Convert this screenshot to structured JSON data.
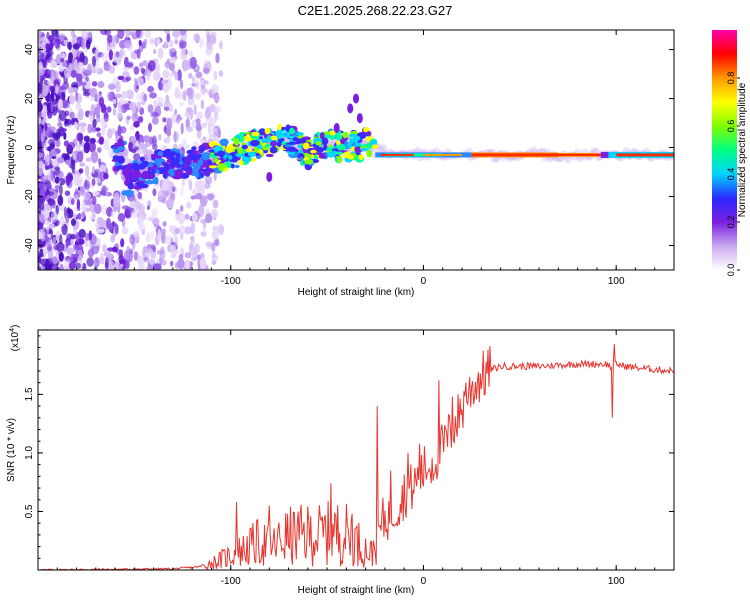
{
  "page_title": "C2E1.2025.268.22.23.G27",
  "chart_data": [
    {
      "type": "heatmap",
      "title": "C2E1.2025.268.22.23.G27",
      "xlabel": "Height of straight line (km)",
      "ylabel": "Frequency (Hz)",
      "xlim": [
        -200,
        130
      ],
      "ylim": [
        -50,
        48
      ],
      "x_ticks": [
        -100,
        0,
        100
      ],
      "y_ticks": [
        -40,
        -20,
        0,
        20,
        40
      ],
      "colorbar": {
        "label": "Normalized spectral amplitude",
        "range": [
          0,
          1
        ],
        "ticks": [
          "0.0",
          "0.2",
          "0.4",
          "0.6",
          "0.8"
        ],
        "tick_values": [
          0.0,
          0.2,
          0.4,
          0.6,
          0.8
        ],
        "colormap": [
          "#ffffff",
          "#c9a8f0",
          "#7a1fe0",
          "#2a2aff",
          "#00d4ff",
          "#00ff80",
          "#80ff00",
          "#ffff00",
          "#ff9900",
          "#ff0000",
          "#ff00aa"
        ]
      },
      "trace": [
        {
          "x": -155,
          "f": -14
        },
        {
          "x": -140,
          "f": -8
        },
        {
          "x": -120,
          "f": -6
        },
        {
          "x": -100,
          "f": -3
        },
        {
          "x": -85,
          "f": 2
        },
        {
          "x": -70,
          "f": 4
        },
        {
          "x": -60,
          "f": -2
        },
        {
          "x": -50,
          "f": 2
        },
        {
          "x": -40,
          "f": 0
        },
        {
          "x": -30,
          "f": 2
        },
        {
          "x": -20,
          "f": -2
        },
        {
          "x": 0,
          "f": -3
        },
        {
          "x": 50,
          "f": -3
        },
        {
          "x": 100,
          "f": -3
        },
        {
          "x": 130,
          "f": -3
        }
      ]
    },
    {
      "type": "line",
      "series_name": "SNR",
      "color": "#e8352e",
      "xlabel": "Height of straight line (km)",
      "ylabel": "SNR (10 * v/v)",
      "y_multiplier_label": "(x10",
      "y_multiplier_exp": "4",
      "xlim": [
        -200,
        130
      ],
      "ylim": [
        0,
        2.05
      ],
      "x_ticks": [
        -100,
        0,
        100
      ],
      "y_ticks": [
        0.5,
        1.0,
        1.5
      ],
      "y_tick_labels": [
        "0.5",
        "1.0",
        "1.5"
      ],
      "keypoints": [
        [
          -200,
          0.0
        ],
        [
          -130,
          0.01
        ],
        [
          -115,
          0.03
        ],
        [
          -105,
          0.09
        ],
        [
          -95,
          0.16
        ],
        [
          -85,
          0.24
        ],
        [
          -78,
          0.2
        ],
        [
          -72,
          0.28
        ],
        [
          -60,
          0.3
        ],
        [
          -55,
          0.3
        ],
        [
          -45,
          0.32
        ],
        [
          -38,
          0.3
        ],
        [
          -32,
          0.2
        ],
        [
          -27,
          0.14
        ],
        [
          -23,
          0.33
        ],
        [
          -20,
          0.44
        ],
        [
          -15,
          0.52
        ],
        [
          -10,
          0.65
        ],
        [
          -5,
          0.72
        ],
        [
          0,
          0.85
        ],
        [
          5,
          0.92
        ],
        [
          10,
          1.05
        ],
        [
          15,
          1.2
        ],
        [
          20,
          1.38
        ],
        [
          25,
          1.55
        ],
        [
          30,
          1.65
        ],
        [
          35,
          1.71
        ],
        [
          40,
          1.74
        ],
        [
          60,
          1.74
        ],
        [
          80,
          1.76
        ],
        [
          95,
          1.76
        ],
        [
          98,
          1.72
        ],
        [
          100,
          1.76
        ],
        [
          105,
          1.74
        ],
        [
          115,
          1.72
        ],
        [
          130,
          1.7
        ]
      ],
      "spikes": [
        [
          -97,
          0.58
        ],
        [
          -80,
          0.55
        ],
        [
          -65,
          0.5
        ],
        [
          -48,
          0.74
        ],
        [
          -37,
          0.48
        ],
        [
          -24,
          1.4
        ],
        [
          -17,
          0.85
        ],
        [
          -8,
          1.0
        ],
        [
          -2,
          1.08
        ],
        [
          8,
          1.62
        ],
        [
          15,
          1.48
        ],
        [
          22,
          1.6
        ],
        [
          99,
          1.93
        ],
        [
          98,
          1.3
        ]
      ]
    }
  ]
}
